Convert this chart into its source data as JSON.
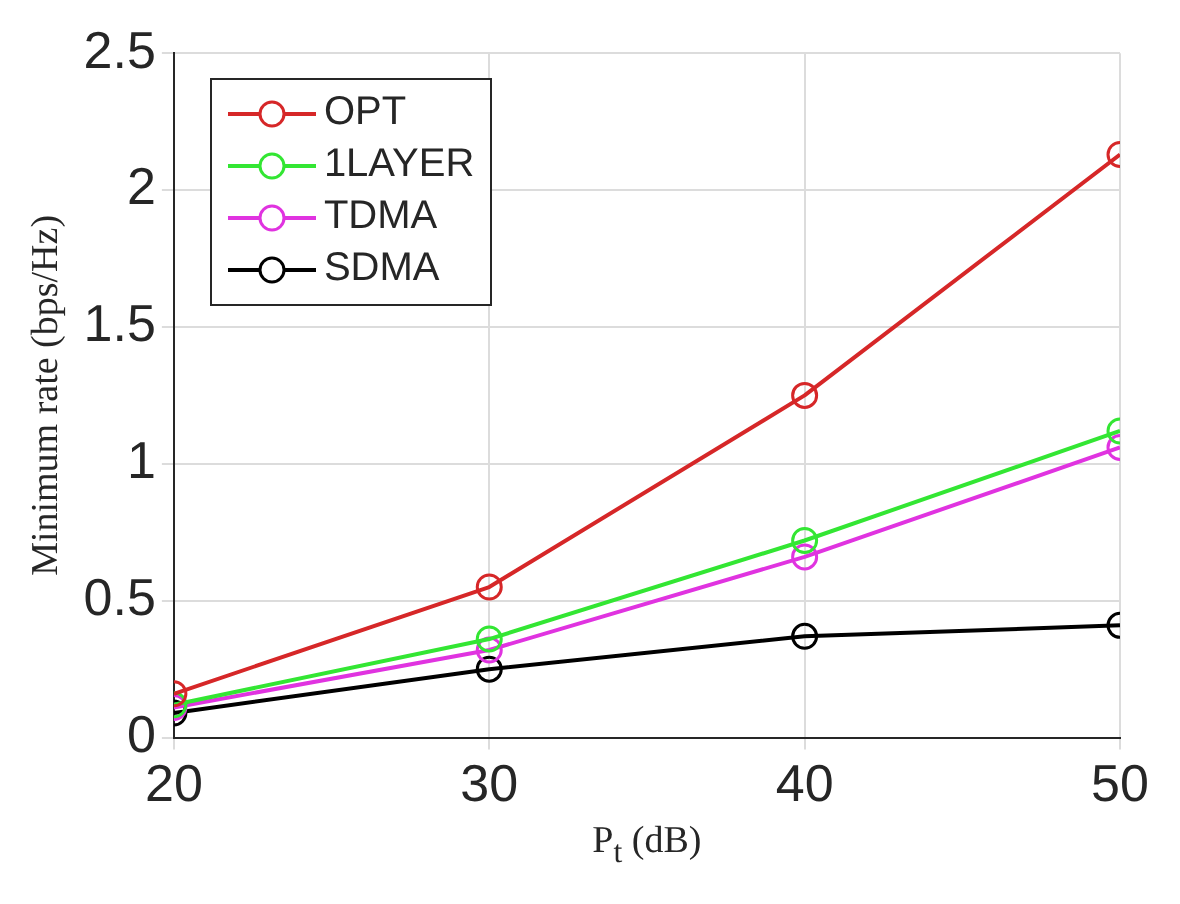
{
  "chart_data": {
    "type": "line",
    "xlabel": "P$_{t}$ (dB)",
    "ylabel": "Minimum rate (bps/Hz)",
    "x": [
      20,
      30,
      40,
      50
    ],
    "series": [
      {
        "name": "OPT",
        "color": "#d62728",
        "values": [
          0.16,
          0.55,
          1.25,
          2.13
        ]
      },
      {
        "name": "1LAYER",
        "color": "#33e633",
        "values": [
          0.12,
          0.36,
          0.72,
          1.12
        ]
      },
      {
        "name": "TDMA",
        "color": "#e033e0",
        "values": [
          0.11,
          0.32,
          0.66,
          1.06
        ]
      },
      {
        "name": "SDMA",
        "color": "#000000",
        "values": [
          0.09,
          0.25,
          0.37,
          0.41
        ]
      }
    ],
    "xlim": [
      20,
      50
    ],
    "xticks": [
      20,
      30,
      40,
      50
    ],
    "ylim": [
      0,
      2.5
    ],
    "yticks": [
      0,
      0.5,
      1,
      1.5,
      2,
      2.5
    ],
    "grid": true,
    "legend": "top left",
    "marker": "circle",
    "line_style": "solid"
  }
}
